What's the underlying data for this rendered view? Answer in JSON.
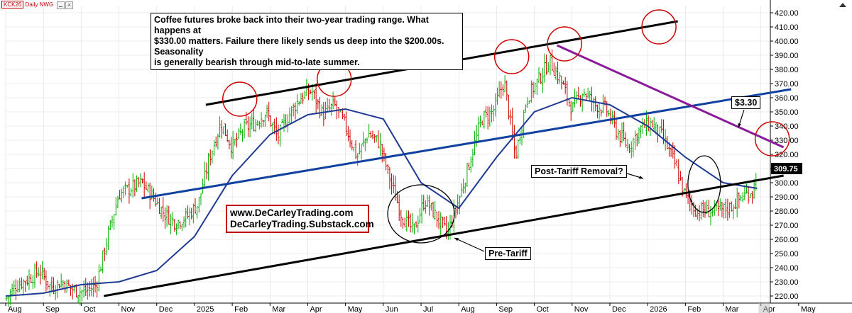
{
  "symbol": {
    "ticker": "KCK26",
    "period": "Daily",
    "tag": "NWG"
  },
  "annotation": {
    "lines": [
      "Coffee futures broke back into their two-year trading range. What happens at",
      "$330.00 matters. Failure there likely sends us deep into the $200.00s. Seasonality",
      "is generally bearish through mid-to-late summer."
    ]
  },
  "branding": {
    "line1": "www.DeCarleyTrading.com",
    "line2": "DeCarleyTrading.Substack.com"
  },
  "labels": {
    "price_target": "$3.30",
    "post_tariff": "Post-Tariff Removal?",
    "pre_tariff": "Pre-Tariff",
    "last_price": "309.75"
  },
  "colors": {
    "up_bar": "#00b000",
    "down_bar": "#d00000",
    "moving_average": "#1f3a93",
    "channel": "#000000",
    "midline": "#1040a0",
    "downtrend": "#8b1a9a",
    "circle": "#d00000",
    "last_price_bg": "#000000",
    "grid": "#dddddd"
  },
  "chart_data": {
    "type": "line",
    "title": "",
    "xlabel": "",
    "ylabel": "",
    "ylim": [
      215,
      425
    ],
    "y_ticks": [
      220,
      230,
      240,
      250,
      260,
      270,
      280,
      290,
      300,
      310,
      320,
      330,
      340,
      350,
      360,
      370,
      380,
      390,
      400,
      410,
      420
    ],
    "y_tick_labels": [
      "220.00",
      "230.00",
      "240.00",
      "250.00",
      "260.00",
      "270.00",
      "280.00",
      "290.00",
      "300.00",
      "310.00",
      "320.00",
      "330.00",
      "340.00",
      "350.00",
      "360.00",
      "370.00",
      "380.00",
      "390.00",
      "400.00",
      "410.00",
      "420.00"
    ],
    "x_months": [
      "Aug",
      "Sep",
      "Oct",
      "Nov",
      "Dec",
      "2025",
      "Feb",
      "Mar",
      "Apr",
      "May",
      "Jun",
      "Jul",
      "Aug",
      "Sep",
      "Oct",
      "Nov",
      "Dec",
      "2026",
      "Feb",
      "Mar",
      "Apr",
      "May"
    ],
    "x_month_index": [
      0,
      1,
      2,
      3,
      4,
      5,
      6,
      7,
      8,
      9,
      10,
      11,
      12,
      13,
      14,
      15,
      16,
      17,
      18,
      19,
      20,
      21
    ],
    "last_index": 19.9,
    "series": [
      {
        "name": "",
        "kind": "price",
        "x": [
          0,
          0.3,
          0.6,
          0.9,
          1.2,
          1.5,
          1.8,
          2.1,
          2.4,
          2.7,
          3.0,
          3.3,
          3.6,
          3.9,
          4.2,
          4.5,
          4.8,
          5.1,
          5.4,
          5.7,
          6.0,
          6.3,
          6.6,
          6.9,
          7.2,
          7.5,
          7.8,
          8.1,
          8.4,
          8.7,
          9.0,
          9.3,
          9.6,
          9.9,
          10.2,
          10.5,
          10.8,
          11.1,
          11.4,
          11.7,
          12.0,
          12.3,
          12.6,
          12.9,
          13.2,
          13.5,
          13.8,
          14.1,
          14.4,
          14.7,
          15.0,
          15.3,
          15.6,
          15.9,
          16.2,
          16.5,
          16.8,
          17.1,
          17.4,
          17.7,
          18.0,
          18.3,
          18.6,
          18.9,
          19.2,
          19.5,
          19.8,
          19.9
        ],
        "y": [
          218,
          228,
          232,
          238,
          226,
          230,
          224,
          223,
          228,
          262,
          292,
          296,
          300,
          290,
          278,
          272,
          276,
          285,
          318,
          342,
          325,
          338,
          342,
          350,
          332,
          348,
          360,
          365,
          348,
          355,
          340,
          318,
          335,
          328,
          300,
          276,
          266,
          288,
          276,
          264,
          288,
          316,
          345,
          350,
          372,
          318,
          360,
          372,
          386,
          372,
          352,
          365,
          355,
          352,
          335,
          325,
          338,
          342,
          332,
          315,
          290,
          280,
          280,
          280,
          283,
          290,
          295,
          310
        ],
        "note": "approximate representative close path"
      },
      {
        "name": "",
        "kind": "moving_average",
        "x": [
          0,
          1,
          2,
          3,
          4,
          5,
          6,
          7,
          8,
          9,
          10,
          11,
          12,
          13,
          14,
          15,
          16,
          17,
          18,
          19,
          19.9
        ],
        "y": [
          220,
          222,
          228,
          230,
          238,
          262,
          305,
          334,
          348,
          352,
          345,
          300,
          282,
          318,
          350,
          360,
          355,
          340,
          318,
          300,
          296
        ]
      }
    ],
    "trendlines": [
      {
        "name": "channel-top",
        "from": [
          5.3,
          355
        ],
        "to": [
          17.8,
          414
        ]
      },
      {
        "name": "channel-bottom",
        "from": [
          2.6,
          220
        ],
        "to": [
          20.6,
          305
        ]
      },
      {
        "name": "channel-mid",
        "from": [
          3.6,
          289
        ],
        "to": [
          20.8,
          366
        ]
      },
      {
        "name": "downtrend",
        "from": [
          14.6,
          397
        ],
        "to": [
          20.6,
          325
        ]
      }
    ],
    "circles": [
      {
        "x": 6.2,
        "y": 359
      },
      {
        "x": 8.7,
        "y": 373
      },
      {
        "x": 13.4,
        "y": 389
      },
      {
        "x": 14.8,
        "y": 398
      },
      {
        "x": 17.3,
        "y": 410
      },
      {
        "x": 20.3,
        "y": 331
      }
    ],
    "ellipses": [
      {
        "name": "pre-tariff-zone",
        "x": 11.0,
        "y": 278
      },
      {
        "name": "post-tariff-zone",
        "x": 18.5,
        "y": 299
      }
    ]
  }
}
